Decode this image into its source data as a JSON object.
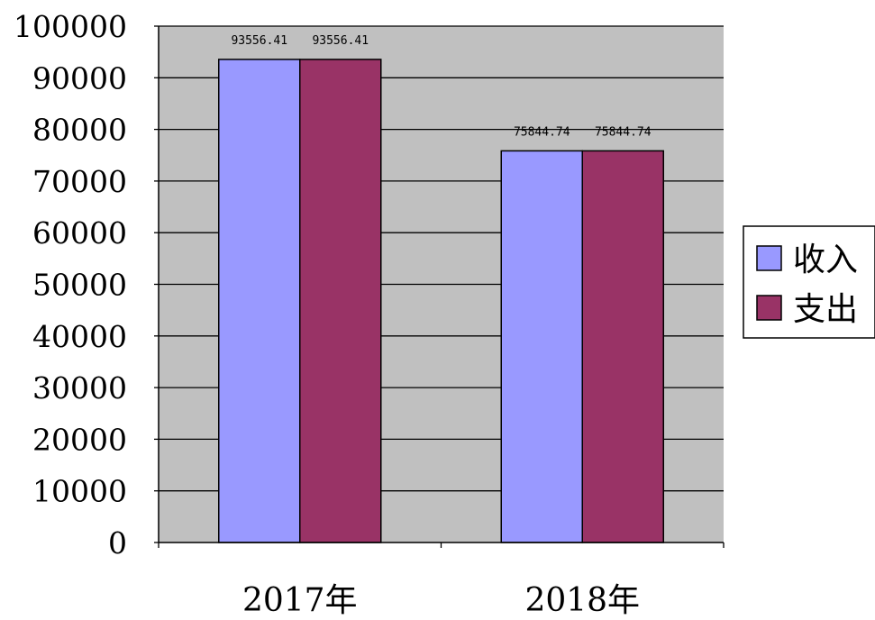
{
  "chart_data": {
    "type": "bar",
    "categories": [
      "2017年",
      "2018年"
    ],
    "series": [
      {
        "name": "收入",
        "values": [
          93556.41,
          75844.74
        ],
        "color": "#9999FF"
      },
      {
        "name": "支出",
        "values": [
          93556.41,
          75844.74
        ],
        "color": "#993366"
      }
    ],
    "data_labels": [
      [
        "93556.41",
        "75844.74"
      ],
      [
        "93556.41",
        "75844.74"
      ]
    ],
    "y_ticks": [
      "0",
      "10000",
      "20000",
      "30000",
      "40000",
      "50000",
      "60000",
      "70000",
      "80000",
      "90000",
      "100000"
    ],
    "ylim": [
      0,
      100000
    ],
    "title": "",
    "xlabel": "",
    "ylabel": "",
    "grid": true,
    "legend_position": "right",
    "plot_background": "#C0C0C0"
  }
}
